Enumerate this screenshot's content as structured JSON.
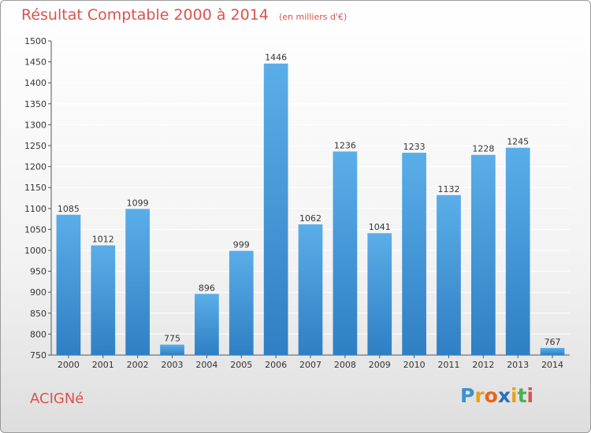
{
  "header": {
    "title": "Résultat Comptable 2000 à 2014",
    "unit": "(en milliers d'€)"
  },
  "footer": {
    "commune": "ACIGNé",
    "logo": [
      "P",
      "r",
      "o",
      "x",
      "i",
      "t",
      "i"
    ],
    "logo_colors": [
      "#3d8fd1",
      "#e8a21c",
      "#e8641c",
      "#2c6fb5",
      "#e8a21c",
      "#4caf50",
      "#d9534f"
    ]
  },
  "colors": {
    "bar_light": "#5aaee8",
    "bar_dark": "#2f7fc4",
    "title": "#d9534f",
    "grid": "#ffffff"
  },
  "chart_data": {
    "type": "bar",
    "title": "Résultat Comptable 2000 à 2014",
    "subtitle": "(en milliers d'€)",
    "xlabel": "",
    "ylabel": "",
    "categories": [
      "2000",
      "2001",
      "2002",
      "2003",
      "2004",
      "2005",
      "2006",
      "2007",
      "2008",
      "2009",
      "2010",
      "2011",
      "2012",
      "2013",
      "2014"
    ],
    "values": [
      1085,
      1012,
      1099,
      775,
      896,
      999,
      1446,
      1062,
      1236,
      1041,
      1233,
      1132,
      1228,
      1245,
      767
    ],
    "ylim": [
      750,
      1500
    ],
    "yticks": [
      750,
      800,
      850,
      900,
      950,
      1000,
      1050,
      1100,
      1150,
      1200,
      1250,
      1300,
      1350,
      1400,
      1450,
      1500
    ],
    "grid": true,
    "data_labels": true
  }
}
